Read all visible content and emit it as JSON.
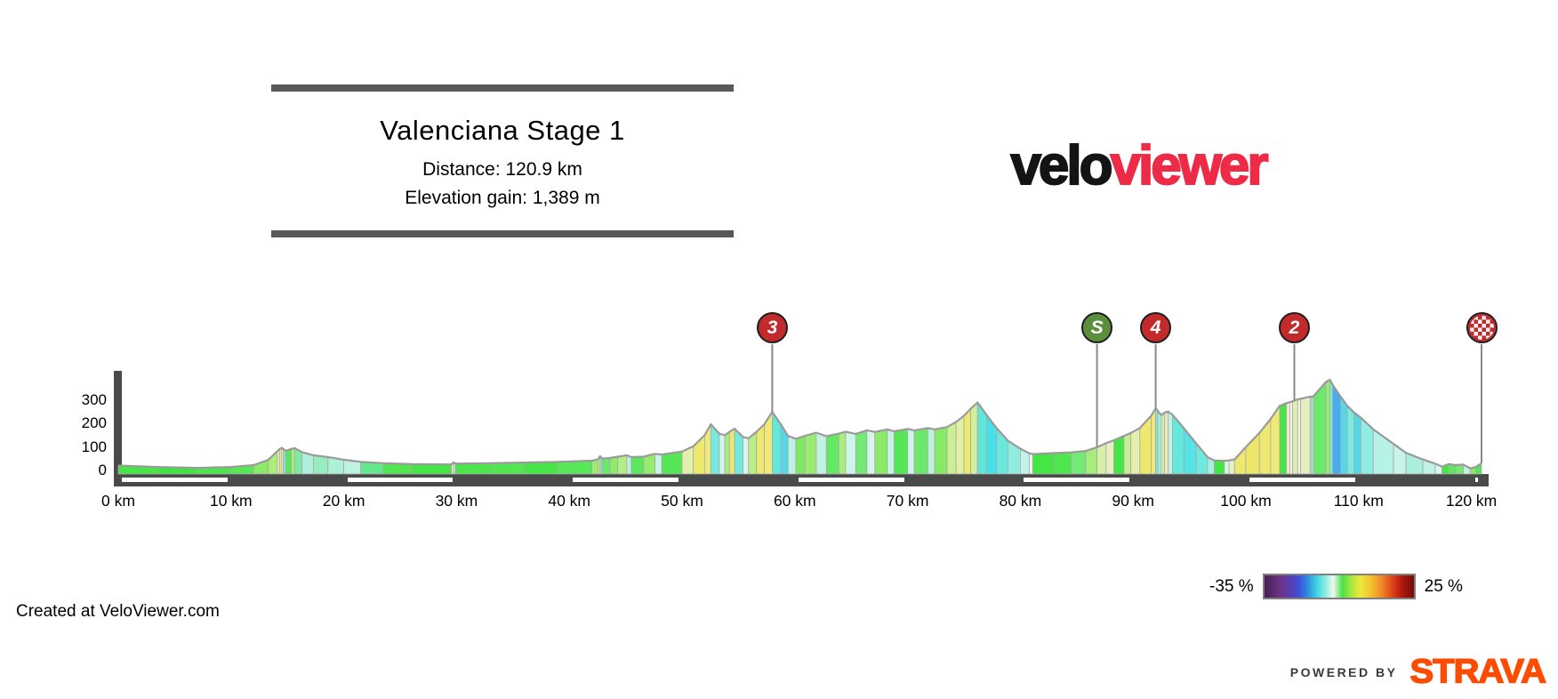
{
  "title_block": {
    "title": "Valenciana Stage 1",
    "distance": "Distance: 120.9 km",
    "elevation_gain": "Elevation gain: 1,389 m"
  },
  "logo": {
    "velo": "velo",
    "viewer": "viewer",
    "velo_color": "#141414",
    "viewer_color": "#ED2B47"
  },
  "legend": {
    "min_label": "-35 %",
    "max_label": "25 %"
  },
  "footer": {
    "credit": "Created at VeloViewer.com",
    "powered_by": "POWERED BY",
    "strava": "STRAVA",
    "strava_color": "#FC4C02"
  },
  "chart_data": {
    "type": "area",
    "title": "Valenciana Stage 1",
    "distance_km": 120.9,
    "elevation_gain_m": 1389,
    "xlim": [
      0,
      120.9
    ],
    "ylim": [
      0,
      440
    ],
    "y_ticks": [
      300,
      200,
      100,
      0
    ],
    "x_ticks": [
      {
        "label": "0 km",
        "km": 0
      },
      {
        "label": "10 km",
        "km": 10
      },
      {
        "label": "20 km",
        "km": 20
      },
      {
        "label": "30 km",
        "km": 30
      },
      {
        "label": "40 km",
        "km": 40
      },
      {
        "label": "50 km",
        "km": 50
      },
      {
        "label": "60 km",
        "km": 60
      },
      {
        "label": "70 km",
        "km": 70
      },
      {
        "label": "80 km",
        "km": 80
      },
      {
        "label": "90 km",
        "km": 90
      },
      {
        "label": "100 km",
        "km": 100
      },
      {
        "label": "110 km",
        "km": 110
      },
      {
        "label": "120 km",
        "km": 120
      }
    ],
    "axis_stripes_km": [
      [
        0,
        10
      ],
      [
        20,
        30
      ],
      [
        40,
        50
      ],
      [
        60,
        70
      ],
      [
        80,
        90
      ],
      [
        100,
        110
      ],
      [
        120,
        120.9
      ]
    ],
    "markers": [
      {
        "label": "3",
        "km": 58.0,
        "type": "climb-cat-3",
        "color": "#C22A2C"
      },
      {
        "label": "S",
        "km": 86.8,
        "type": "sprint",
        "color": "#5B8F3E"
      },
      {
        "label": "4",
        "km": 92.0,
        "type": "climb-cat-4",
        "color": "#C22A2C"
      },
      {
        "label": "2",
        "km": 104.3,
        "type": "climb-cat-2",
        "color": "#C22A2C"
      },
      {
        "label": "",
        "km": 120.9,
        "type": "finish",
        "color": "#C22A2C"
      }
    ],
    "gradient_legend": {
      "min_pct": -35,
      "max_pct": 25
    },
    "segments_format": [
      "start_km",
      "end_km",
      "start_elev_m",
      "end_elev_m",
      "gradient_color"
    ],
    "segments": [
      [
        0,
        3.5,
        36,
        30,
        "#47E647"
      ],
      [
        3.5,
        7,
        30,
        26,
        "#3FE53F"
      ],
      [
        7,
        10,
        26,
        30,
        "#4BE64B"
      ],
      [
        10,
        12,
        30,
        38,
        "#55E755"
      ],
      [
        12,
        13.3,
        38,
        60,
        "#8BEA66"
      ],
      [
        13.3,
        14.1,
        60,
        97,
        "#ABEE7A"
      ],
      [
        14.1,
        14.3,
        97,
        106,
        "#E9EFC0"
      ],
      [
        14.3,
        14.5,
        106,
        112,
        "#EDE96E"
      ],
      [
        14.5,
        14.62,
        112,
        107,
        "#F6F6EF"
      ],
      [
        14.62,
        14.85,
        107,
        99,
        "#7BEBDD"
      ],
      [
        14.85,
        15.35,
        99,
        107,
        "#59E759"
      ],
      [
        15.35,
        15.65,
        107,
        110,
        "#A5ED7C"
      ],
      [
        15.65,
        16.3,
        110,
        93,
        "#7FEAA6"
      ],
      [
        16.3,
        17.3,
        93,
        80,
        "#AFF0DC"
      ],
      [
        17.3,
        18.6,
        80,
        72,
        "#98ECBE"
      ],
      [
        18.6,
        20,
        72,
        61,
        "#ACF0D8"
      ],
      [
        20,
        21.5,
        61,
        52,
        "#BFF2E2"
      ],
      [
        21.5,
        23.5,
        52,
        46,
        "#64E88E"
      ],
      [
        23.5,
        26,
        46,
        42,
        "#50E650"
      ],
      [
        26,
        29.55,
        42,
        41,
        "#44E544"
      ],
      [
        29.55,
        29.75,
        41,
        50,
        "#E9EFC0"
      ],
      [
        29.75,
        29.9,
        50,
        44,
        "#CFF4EA"
      ],
      [
        29.9,
        33,
        44,
        46,
        "#4BE64B"
      ],
      [
        33,
        36,
        46,
        49,
        "#52E752"
      ],
      [
        36,
        39,
        49,
        52,
        "#47E647"
      ],
      [
        39,
        42,
        52,
        57,
        "#57E757"
      ],
      [
        42,
        42.55,
        57,
        62,
        "#9BEC72"
      ],
      [
        42.55,
        42.72,
        62,
        76,
        "#EDE96E"
      ],
      [
        42.72,
        42.9,
        76,
        66,
        "#7BEBDD"
      ],
      [
        42.9,
        43.6,
        66,
        68,
        "#6CE96C"
      ],
      [
        43.6,
        44.3,
        68,
        74,
        "#8DEB69"
      ],
      [
        44.3,
        45.1,
        74,
        80,
        "#B2EE83"
      ],
      [
        45.1,
        45.5,
        80,
        72,
        "#BDF1E0"
      ],
      [
        45.5,
        46.6,
        72,
        74,
        "#5CE75C"
      ],
      [
        46.6,
        47.6,
        74,
        86,
        "#97EC6F"
      ],
      [
        47.6,
        48.2,
        86,
        83,
        "#C9F3E5"
      ],
      [
        48.2,
        50,
        83,
        96,
        "#55E755"
      ],
      [
        50,
        51,
        96,
        118,
        "#E3EFAD"
      ],
      [
        51,
        52,
        118,
        165,
        "#EDE96E"
      ],
      [
        52,
        52.55,
        165,
        212,
        "#EFEA77"
      ],
      [
        52.55,
        53.3,
        212,
        172,
        "#76EADF"
      ],
      [
        53.3,
        53.8,
        172,
        165,
        "#CFF4EA"
      ],
      [
        53.8,
        54.2,
        165,
        180,
        "#A9ED7C"
      ],
      [
        54.2,
        54.65,
        180,
        193,
        "#EDE96E"
      ],
      [
        54.65,
        55.4,
        193,
        158,
        "#72EADD"
      ],
      [
        55.4,
        55.9,
        158,
        152,
        "#D9F6EC"
      ],
      [
        55.9,
        56.6,
        152,
        180,
        "#B9EF88"
      ],
      [
        56.6,
        57.3,
        180,
        212,
        "#EDE96E"
      ],
      [
        57.3,
        58.0,
        212,
        265,
        "#EFEA77"
      ],
      [
        58.0,
        58.75,
        265,
        212,
        "#63E8DC"
      ],
      [
        58.75,
        59.4,
        212,
        162,
        "#55D7E8"
      ],
      [
        59.4,
        60.1,
        162,
        150,
        "#BDF1E4"
      ],
      [
        60.1,
        60.9,
        150,
        163,
        "#7EEA5F"
      ],
      [
        60.9,
        61.9,
        163,
        176,
        "#9BEC72"
      ],
      [
        61.9,
        62.8,
        176,
        161,
        "#C2F2E2"
      ],
      [
        62.8,
        63.9,
        161,
        172,
        "#63E863"
      ],
      [
        63.9,
        64.5,
        172,
        180,
        "#A9ED7C"
      ],
      [
        64.5,
        65.4,
        180,
        171,
        "#CFF4EA"
      ],
      [
        65.4,
        66.4,
        171,
        186,
        "#74E974"
      ],
      [
        66.4,
        67.1,
        186,
        179,
        "#D9F6EE"
      ],
      [
        67.1,
        68.2,
        179,
        190,
        "#8BEB68"
      ],
      [
        68.2,
        68.8,
        190,
        182,
        "#C6F3E4"
      ],
      [
        68.8,
        70.0,
        182,
        192,
        "#55E755"
      ],
      [
        70.0,
        70.6,
        192,
        186,
        "#CFF4EA"
      ],
      [
        70.6,
        71.8,
        186,
        196,
        "#6CE96C"
      ],
      [
        71.8,
        72.4,
        196,
        190,
        "#BDF1E0"
      ],
      [
        72.4,
        73.5,
        190,
        200,
        "#86EA66"
      ],
      [
        73.5,
        74.3,
        200,
        222,
        "#C9F094"
      ],
      [
        74.3,
        75.0,
        222,
        248,
        "#E3EFA3"
      ],
      [
        75.0,
        75.6,
        248,
        278,
        "#EDE96E"
      ],
      [
        75.6,
        76.2,
        278,
        305,
        "#D4EF9B"
      ],
      [
        76.2,
        77.0,
        305,
        252,
        "#5FE8DA"
      ],
      [
        77.0,
        77.9,
        252,
        195,
        "#49DFE8"
      ],
      [
        77.9,
        78.9,
        195,
        142,
        "#68E9DC"
      ],
      [
        78.9,
        80.0,
        142,
        108,
        "#8FEDE0"
      ],
      [
        80.0,
        80.8,
        108,
        88,
        "#C2F2E8"
      ],
      [
        80.8,
        81.1,
        88,
        85,
        "#EDFAF4"
      ],
      [
        81.1,
        83.0,
        85,
        89,
        "#44E544"
      ],
      [
        83.0,
        84.5,
        89,
        92,
        "#50E650"
      ],
      [
        84.5,
        85.8,
        92,
        98,
        "#74E974"
      ],
      [
        85.8,
        86.8,
        98,
        114,
        "#A5ED7C"
      ],
      [
        86.8,
        87.6,
        114,
        131,
        "#D7F0A8"
      ],
      [
        87.6,
        88.3,
        131,
        144,
        "#E9EFC0"
      ],
      [
        88.3,
        89.2,
        144,
        162,
        "#44E544"
      ],
      [
        89.2,
        89.8,
        162,
        175,
        "#C5EF93"
      ],
      [
        89.8,
        90.6,
        175,
        196,
        "#E6EFAF"
      ],
      [
        90.6,
        91.6,
        196,
        248,
        "#EDE96E"
      ],
      [
        91.6,
        92.0,
        248,
        280,
        "#EFEA77"
      ],
      [
        92.0,
        92.2,
        280,
        268,
        "#7BEBDD"
      ],
      [
        92.2,
        92.5,
        268,
        250,
        "#A5EFE3"
      ],
      [
        92.5,
        92.8,
        250,
        262,
        "#D7F0A8"
      ],
      [
        92.8,
        93.1,
        262,
        266,
        "#E9EFC0"
      ],
      [
        93.1,
        93.5,
        266,
        252,
        "#C2F2E6"
      ],
      [
        93.5,
        94.5,
        252,
        195,
        "#63E8DC"
      ],
      [
        94.5,
        95.6,
        195,
        130,
        "#55E3E8"
      ],
      [
        95.6,
        96.6,
        130,
        72,
        "#6FE9DE"
      ],
      [
        96.6,
        97.2,
        72,
        58,
        "#A5EFE3"
      ],
      [
        97.2,
        98.1,
        58,
        56,
        "#44E544"
      ],
      [
        98.1,
        98.5,
        56,
        58,
        "#D9F6EC"
      ],
      [
        98.5,
        99.0,
        58,
        62,
        "#E9EFC0"
      ],
      [
        99.0,
        100.0,
        62,
        115,
        "#EDE96E"
      ],
      [
        100.0,
        101.2,
        115,
        175,
        "#EEE86A"
      ],
      [
        101.2,
        102.2,
        175,
        235,
        "#EDE96E"
      ],
      [
        102.2,
        103.0,
        235,
        290,
        "#EFEA77"
      ],
      [
        103.0,
        103.6,
        290,
        302,
        "#44E544"
      ],
      [
        103.6,
        103.9,
        302,
        306,
        "#E9EFC0"
      ],
      [
        103.9,
        104.15,
        306,
        310,
        "#F6F6EF"
      ],
      [
        104.15,
        104.6,
        310,
        318,
        "#DDEFB0"
      ],
      [
        104.6,
        104.85,
        318,
        320,
        "#F2F2E4"
      ],
      [
        104.85,
        105.7,
        320,
        330,
        "#E6EFBB"
      ],
      [
        105.7,
        105.85,
        330,
        328,
        "#9FEFE6"
      ],
      [
        105.85,
        106.0,
        328,
        332,
        "#CFF4EA"
      ],
      [
        106.0,
        107.1,
        332,
        392,
        "#6CE96C"
      ],
      [
        107.1,
        107.45,
        392,
        402,
        "#98EC6F"
      ],
      [
        107.45,
        107.7,
        402,
        380,
        "#7BEBDD"
      ],
      [
        107.7,
        108.4,
        380,
        330,
        "#47ABF0"
      ],
      [
        108.4,
        109.0,
        330,
        290,
        "#55D7E8"
      ],
      [
        109.0,
        109.6,
        290,
        262,
        "#7BEBDD"
      ],
      [
        109.6,
        110.2,
        262,
        240,
        "#55D7E8"
      ],
      [
        110.2,
        111.3,
        240,
        190,
        "#8FEDE2"
      ],
      [
        111.3,
        113.1,
        190,
        128,
        "#B7F2E8"
      ],
      [
        113.1,
        114.2,
        128,
        90,
        "#C9F4EA"
      ],
      [
        114.2,
        115.7,
        90,
        62,
        "#A9EFDC"
      ],
      [
        115.7,
        116.8,
        62,
        44,
        "#BFF2E4"
      ],
      [
        116.8,
        117.4,
        44,
        32,
        "#D9F6EE"
      ],
      [
        117.4,
        118.0,
        32,
        42,
        "#44E544"
      ],
      [
        118.0,
        118.6,
        42,
        38,
        "#5CE75C"
      ],
      [
        118.6,
        119.3,
        38,
        40,
        "#74E974"
      ],
      [
        119.3,
        119.9,
        40,
        24,
        "#C2F2E6"
      ],
      [
        119.9,
        120.4,
        24,
        30,
        "#86EA66"
      ],
      [
        120.4,
        120.9,
        30,
        46,
        "#55E755"
      ]
    ]
  }
}
